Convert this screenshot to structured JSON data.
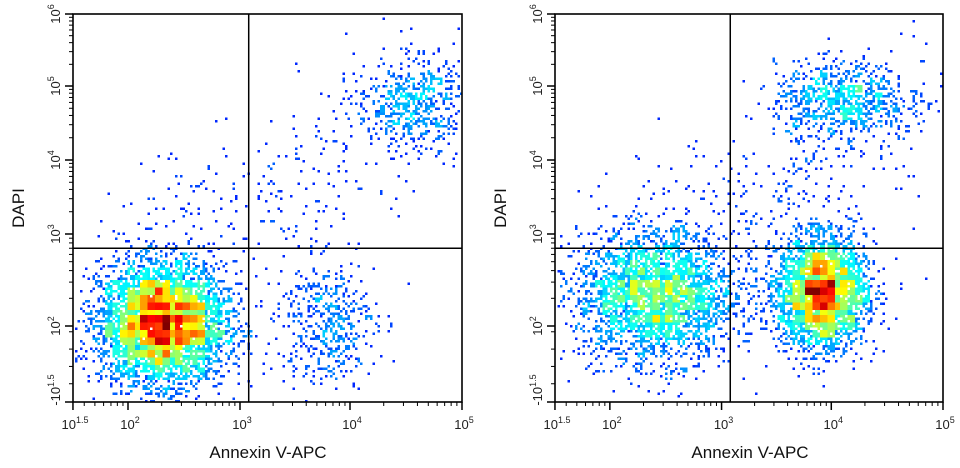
{
  "chart_data": [
    {
      "type": "scatter",
      "subtype": "flow-cytometry-density-dot-plot",
      "xlabel": "Annexin V-APC",
      "ylabel": "DAPI",
      "x_scale": "log",
      "y_scale": "biexponential",
      "xlim": [
        31.6,
        100000
      ],
      "ylim": [
        -31.6,
        1000000
      ],
      "x_ticks": [
        {
          "value": 31.6,
          "base": "10",
          "exp": "1.5"
        },
        {
          "value": 100,
          "base": "10",
          "exp": "2"
        },
        {
          "value": 1000,
          "base": "10",
          "exp": "3"
        },
        {
          "value": 10000,
          "base": "10",
          "exp": "4"
        },
        {
          "value": 100000,
          "base": "10",
          "exp": "5"
        }
      ],
      "y_ticks": [
        {
          "value": -31.6,
          "base": "-10",
          "exp": "1.5"
        },
        {
          "value": 100,
          "base": "10",
          "exp": "2"
        },
        {
          "value": 1000,
          "base": "10",
          "exp": "3"
        },
        {
          "value": 10000,
          "base": "10",
          "exp": "4"
        },
        {
          "value": 100000,
          "base": "10",
          "exp": "5"
        },
        {
          "value": 1000000,
          "base": "10",
          "exp": "6"
        }
      ],
      "quadrant_gates": {
        "x": 1200,
        "y": 700
      },
      "populations": [
        {
          "quadrant": "lower-left",
          "center": [
            200,
            110
          ],
          "spread_decades": [
            0.28,
            0.32
          ],
          "events": 5200
        },
        {
          "quadrant": "lower-right",
          "center": [
            6000,
            110
          ],
          "spread_decades": [
            0.22,
            0.35
          ],
          "events": 450
        },
        {
          "quadrant": "upper-right",
          "center": [
            35000,
            60000
          ],
          "spread_decades": [
            0.25,
            0.3
          ],
          "events": 550
        },
        {
          "quadrant": "upper-right-diagonal",
          "center": [
            5000,
            8000
          ],
          "spread_decades": [
            0.45,
            0.45
          ],
          "events": 220
        },
        {
          "quadrant": "upper-left",
          "center": [
            300,
            3000
          ],
          "spread_decades": [
            0.35,
            0.45
          ],
          "events": 50
        }
      ],
      "grid": false,
      "colormap": "jet (density)"
    },
    {
      "type": "scatter",
      "subtype": "flow-cytometry-density-dot-plot",
      "xlabel": "Annexin V-APC",
      "ylabel": "DAPI",
      "x_scale": "log",
      "y_scale": "biexponential",
      "xlim": [
        31.6,
        100000
      ],
      "ylim": [
        -31.6,
        1000000
      ],
      "x_ticks": [
        {
          "value": 31.6,
          "base": "10",
          "exp": "1.5"
        },
        {
          "value": 100,
          "base": "10",
          "exp": "2"
        },
        {
          "value": 1000,
          "base": "10",
          "exp": "3"
        },
        {
          "value": 10000,
          "base": "10",
          "exp": "4"
        },
        {
          "value": 100000,
          "base": "10",
          "exp": "5"
        }
      ],
      "y_ticks": [
        {
          "value": -31.6,
          "base": "-10",
          "exp": "1.5"
        },
        {
          "value": 100,
          "base": "10",
          "exp": "2"
        },
        {
          "value": 1000,
          "base": "10",
          "exp": "3"
        },
        {
          "value": 10000,
          "base": "10",
          "exp": "4"
        },
        {
          "value": 100000,
          "base": "10",
          "exp": "5"
        },
        {
          "value": 1000000,
          "base": "10",
          "exp": "6"
        }
      ],
      "quadrant_gates": {
        "x": 1200,
        "y": 700
      },
      "populations": [
        {
          "quadrant": "lower-left",
          "center": [
            250,
            220
          ],
          "spread_decades": [
            0.35,
            0.35
          ],
          "events": 3000
        },
        {
          "quadrant": "lower-right",
          "center": [
            8000,
            240
          ],
          "spread_decades": [
            0.2,
            0.3
          ],
          "events": 3200
        },
        {
          "quadrant": "upper-right",
          "center": [
            12000,
            70000
          ],
          "spread_decades": [
            0.3,
            0.25
          ],
          "events": 750
        },
        {
          "quadrant": "upper-right-diagonal",
          "center": [
            7000,
            6000
          ],
          "spread_decades": [
            0.3,
            0.5
          ],
          "events": 300
        },
        {
          "quadrant": "upper-left",
          "center": [
            400,
            3000
          ],
          "spread_decades": [
            0.35,
            0.45
          ],
          "events": 60
        }
      ],
      "grid": false,
      "colormap": "jet (density)"
    }
  ]
}
